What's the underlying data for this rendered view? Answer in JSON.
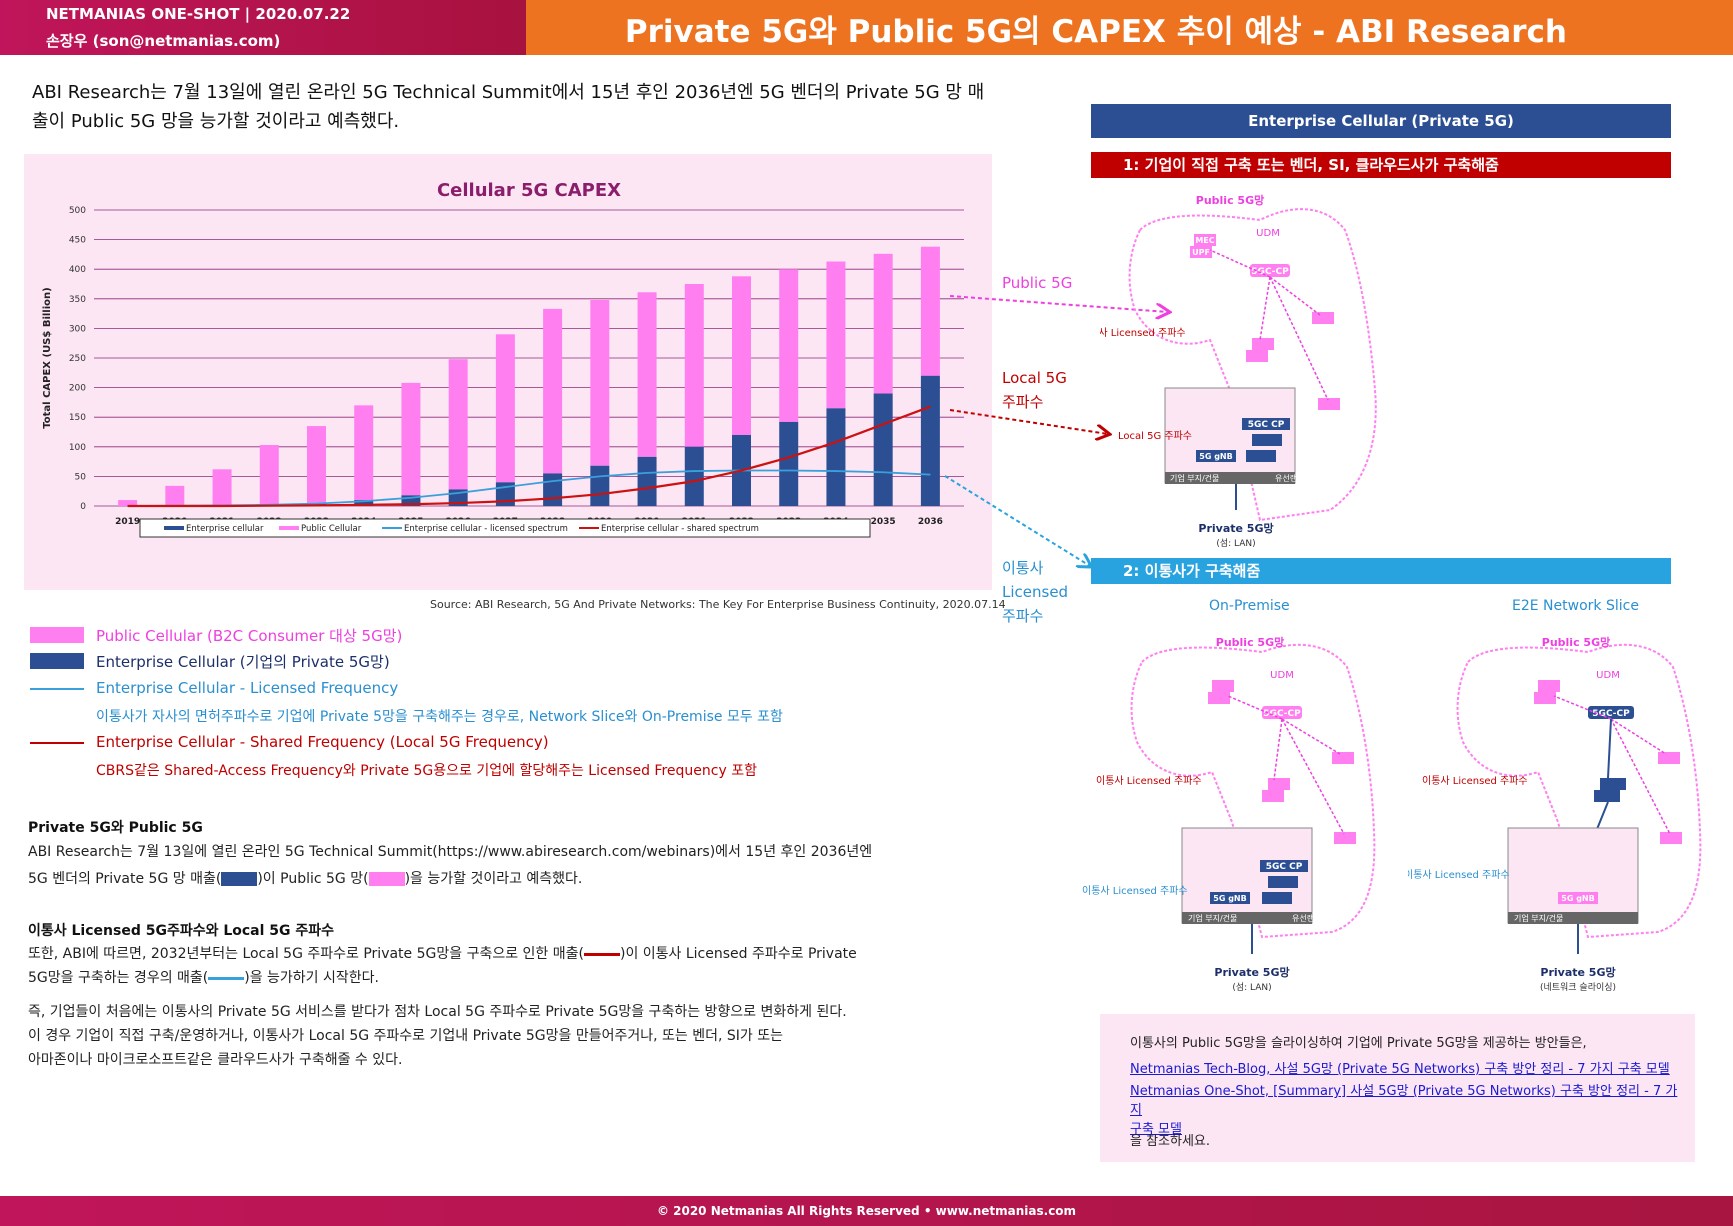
{
  "header": {
    "brand_line": "NETMANIAS ONE-SHOT  |  2020.07.22",
    "author_line": "손장우 (son@netmanias.com)",
    "title": "Private 5G와 Public 5G의 CAPEX 추이 예상 - ABI Research"
  },
  "lead": "ABI Research는 7월 13일에 열린 온라인 5G Technical Summit에서 15년 후인 2036년엔 5G 벤더의 Private 5G 망 매출이 Public 5G 망을 능가할 것이라고 예측했다.",
  "chart_data": {
    "type": "bar",
    "title": "Cellular 5G CAPEX",
    "ylabel": "Total CAPEX (US$ Billion)",
    "xlabel": "",
    "ylim": [
      0,
      500
    ],
    "yticks": [
      "0",
      "50",
      "100",
      "150",
      "200",
      "250",
      "300",
      "350",
      "400",
      "450",
      "500"
    ],
    "categories": [
      "2019",
      "2020",
      "2021",
      "2022",
      "2023",
      "2024",
      "2025",
      "2026",
      "2027",
      "2028",
      "2029",
      "2030",
      "2031",
      "2032",
      "2033",
      "2034",
      "2035",
      "2036"
    ],
    "stacked": true,
    "series": [
      {
        "name": "Enterprise cellular",
        "kind": "bar",
        "color": "#2c4f94",
        "values": [
          0,
          1,
          2,
          3,
          5,
          10,
          18,
          28,
          40,
          55,
          68,
          83,
          100,
          120,
          142,
          165,
          190,
          220
        ]
      },
      {
        "name": "Public Cellular",
        "kind": "bar",
        "color": "#ff7ff0",
        "values": [
          10,
          33,
          60,
          100,
          130,
          160,
          190,
          220,
          250,
          278,
          280,
          278,
          275,
          268,
          258,
          248,
          236,
          218
        ]
      },
      {
        "name": "Enterprise cellular - licensed spectrum",
        "kind": "line",
        "color": "#3aa0dc",
        "values": [
          0,
          0.5,
          1,
          2,
          4,
          8,
          14,
          22,
          32,
          42,
          50,
          56,
          59,
          60,
          60,
          59,
          57,
          53
        ]
      },
      {
        "name": "Enterprise cellular - shared spectrum",
        "kind": "line",
        "color": "#cc1111",
        "values": [
          0,
          0,
          0,
          0.5,
          1,
          2,
          3,
          5,
          8,
          13,
          20,
          30,
          42,
          60,
          82,
          108,
          138,
          168
        ]
      }
    ],
    "legend_position": "bottom",
    "grid": true
  },
  "source_note": "Source: ABI Research, 5G And Private Networks: The Key For Enterprise Business Continuity, 2020.07.14",
  "legend_blocks": {
    "public": "Public Cellular (B2C Consumer 대상 5G망)",
    "enterprise": "Enterprise Cellular (기업의 Private 5G망)",
    "licensed": "Enterprise Cellular - Licensed Frequency",
    "licensed_desc": "이통사가 자사의 면허주파수로 기업에 Private 5망을 구축해주는 경우로, Network Slice와 On-Premise 모두 포함",
    "shared": "Enterprise Cellular - Shared Frequency (Local 5G Frequency)",
    "shared_desc": "CBRS같은 Shared-Access Frequency와 Private 5G용으로 기업에 할당해주는 Licensed Frequency 포함"
  },
  "section1": {
    "heading": "Private 5G와 Public 5G",
    "p1": "ABI Research는 7월 13일에 열린 온라인 5G Technical Summit(https://www.abiresearch.com/webinars)에서 15년 후인 2036년엔",
    "p2a": "5G 벤더의 Private 5G 망 매출(",
    "p2b": ")이 Public 5G 망(",
    "p2c": ")을 능가할 것이라고 예측했다."
  },
  "section2": {
    "heading": "이통사 Licensed 5G주파수와 Local 5G 주파수",
    "p1a": "또한, ABI에 따르면, 2032년부터는 Local 5G 주파수로 Private 5G망을 구축으로 인한 매출(",
    "p1b": ")이 이통사 Licensed 주파수로 Private",
    "p2a": "5G망을 구축하는 경우의 매출(",
    "p2b": ")을 능가하기 시작한다.",
    "p3": "즉, 기업들이 처음에는 이통사의 Private 5G 서비스를 받다가 점차 Local 5G 주파수로 Private 5G망을 구축하는 방향으로 변화하게 된다.",
    "p4": "이 경우 기업이 직접 구축/운영하거나, 이통사가 Local 5G 주파수로 기업내 Private 5G망을 만들어주거나, 또는 벤더, SI가 또는",
    "p5": "아마존이나 마이크로소프트같은 클라우드사가 구축해줄 수 있다."
  },
  "arrows": {
    "public5g": "Public 5G",
    "local5g_1": "Local 5G",
    "local5g_2": "주파수",
    "carrier_1": "이통사",
    "carrier_2": "Licensed",
    "carrier_3": "주파수"
  },
  "right_panel": {
    "title": "Enterprise Cellular (Private 5G)",
    "case1": "1: 기업이 직접 구축 또는 벤더, SI, 클라우드사가 구축해줌",
    "case2": "2: 이통사가 구축해줌",
    "on_premise": "On-Premise",
    "e2e_slice": "E2E Network Slice",
    "public_net": "Public 5G망",
    "udm": "UDM",
    "mec": "MEC",
    "upf": "UPF",
    "cp": "5GC-CP",
    "cp2": "5GC CP",
    "gnb": "5G gNB",
    "carrier_licensed": "이통사 Licensed 주파수",
    "local_freq": "Local 5G 주파수",
    "enterprise_site": "기업 부지/건물",
    "wired": "유선랜",
    "private_net": "Private 5G망",
    "private_sub_lan": "(섬: LAN)",
    "private_sub_slice": "(네트워크 슬라이싱)"
  },
  "note": {
    "intro": "이통사의 Public 5G망을 슬라이싱하여 기업에 Private 5G망을 제공하는 방안들은,",
    "link1": "Netmanias Tech-Blog, 사설 5G망 (Private 5G Networks) 구축 방안 정리 - 7 가지 구축 모델",
    "link2a": "Netmanias One-Shot, [Summary] 사설 5G망 (Private 5G Networks) 구축 방안 정리 - 7 가지",
    "link2b": "구축 모델",
    "outro": "을 참조하세요."
  },
  "footer": "© 2020 Netmanias All Rights Reserved • www.netmanias.com"
}
